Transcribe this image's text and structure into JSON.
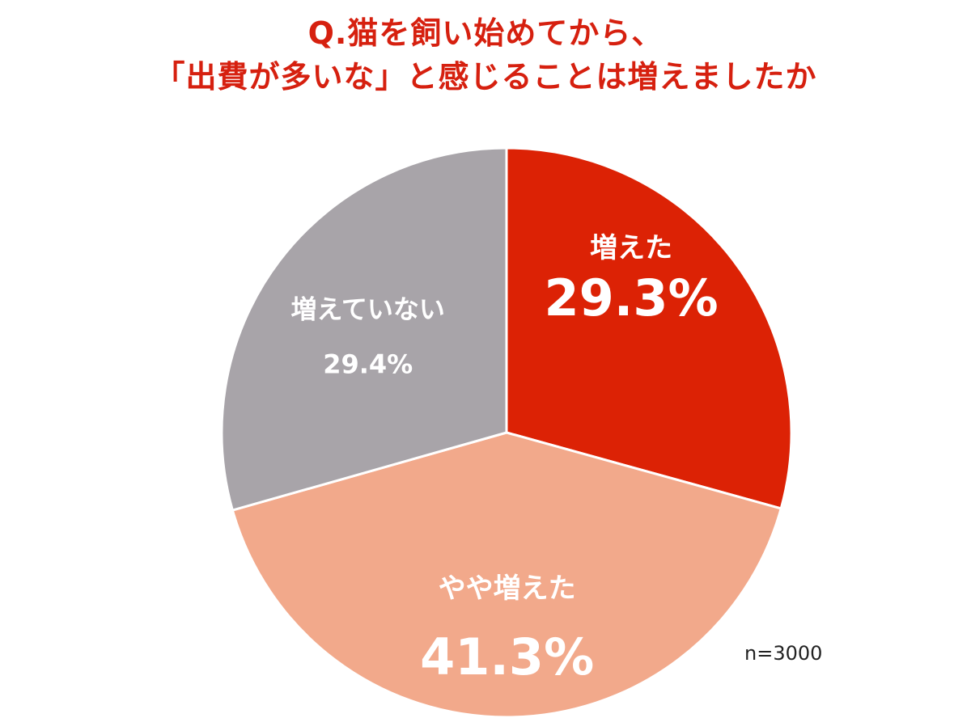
{
  "chart_data": {
    "type": "pie",
    "title": [
      "Q.猫を飼い始めてから、",
      "「出費が多いな」と感じることは増えましたか"
    ],
    "categories": [
      "増えた",
      "やや増えた",
      "増えていない"
    ],
    "values": [
      29.3,
      41.3,
      29.4
    ],
    "value_labels": [
      "29.3%",
      "41.3%",
      "29.4%"
    ],
    "colors": [
      "#dc2205",
      "#f2a98b",
      "#a8a4a9"
    ],
    "start_angle": "12 o'clock",
    "direction": "clockwise",
    "legend": "none",
    "sample_size": "n=3000"
  },
  "colors": {
    "title": "#d6200f",
    "slice_label": "#ffffff",
    "separator": "#ffffff"
  }
}
